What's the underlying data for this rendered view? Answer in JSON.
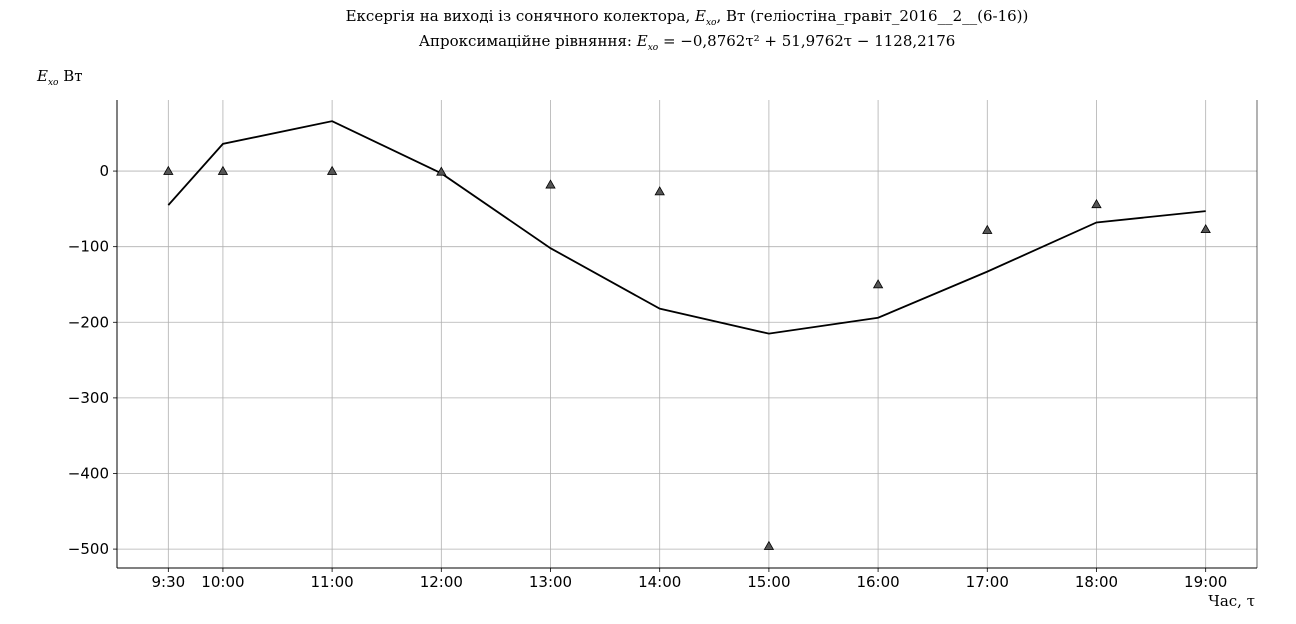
{
  "chart_data": {
    "type": "line+scatter",
    "title": {
      "line1_pre": "Ексергія на виході із сонячного колектора, ",
      "line1_var": "E",
      "line1_sub": "xo",
      "line1_post": ", Вт (геліостіна_гравіт_2016__2__(6-16))",
      "line2_pre": "Апроксимаційне рівняння: ",
      "line2_var": "E",
      "line2_sub": "xo",
      "line2_post": " = −0,8762τ² + 51,9762τ − 1128,2176"
    },
    "ylabel": {
      "var": "E",
      "sub": "xo",
      "unit": " Вт"
    },
    "xlabel": "Час, τ",
    "x_ticks": [
      {
        "x": 9.5,
        "label": "9:30"
      },
      {
        "x": 10,
        "label": "10:00"
      },
      {
        "x": 11,
        "label": "11:00"
      },
      {
        "x": 12,
        "label": "12:00"
      },
      {
        "x": 13,
        "label": "13:00"
      },
      {
        "x": 14,
        "label": "14:00"
      },
      {
        "x": 15,
        "label": "15:00"
      },
      {
        "x": 16,
        "label": "16:00"
      },
      {
        "x": 17,
        "label": "17:00"
      },
      {
        "x": 18,
        "label": "18:00"
      },
      {
        "x": 19,
        "label": "19:00"
      }
    ],
    "y_ticks": [
      {
        "y": 0,
        "label": "0"
      },
      {
        "y": -100,
        "label": "−100"
      },
      {
        "y": -200,
        "label": "−200"
      },
      {
        "y": -300,
        "label": "−300"
      },
      {
        "y": -400,
        "label": "−400"
      },
      {
        "y": -500,
        "label": "−500"
      }
    ],
    "xlim": [
      9.03,
      19.47
    ],
    "ylim": [
      -525,
      94
    ],
    "grid": true,
    "series": [
      {
        "kind": "line",
        "color": "#000000",
        "x": [
          9.5,
          10,
          11,
          12,
          13,
          14,
          15,
          16,
          17,
          18,
          19
        ],
        "y": [
          -45,
          36,
          66,
          -3,
          -102,
          -182,
          -215,
          -194,
          -133,
          -68,
          -53
        ]
      },
      {
        "kind": "scatter",
        "marker": "triangle",
        "color": "#555555",
        "x": [
          9.5,
          10,
          11,
          12,
          13,
          14,
          15,
          16,
          17,
          18,
          19
        ],
        "y": [
          0,
          0,
          0,
          -1,
          -18,
          -27,
          -496,
          -150,
          -78,
          -44,
          -77
        ]
      }
    ]
  }
}
